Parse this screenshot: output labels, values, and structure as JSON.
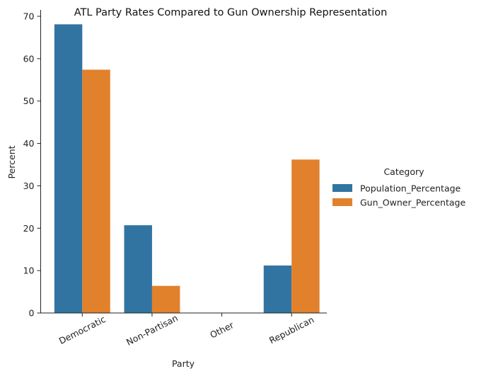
{
  "chart_data": {
    "type": "bar",
    "title": "ATL Party Rates Compared to Gun Ownership Representation",
    "xlabel": "Party",
    "ylabel": "Percent",
    "categories": [
      "Democratic",
      "Non-Partisan",
      "Other",
      "Republican"
    ],
    "series": [
      {
        "name": "Population_Percentage",
        "color": "#3274a1",
        "values": [
          68.1,
          20.7,
          0,
          11.2
        ]
      },
      {
        "name": "Gun_Owner_Percentage",
        "color": "#e1812c",
        "values": [
          57.4,
          6.4,
          0,
          36.2
        ]
      }
    ],
    "ylim": [
      0,
      71.5
    ],
    "yticks": [
      0,
      10,
      20,
      30,
      40,
      50,
      60,
      70
    ],
    "legend": {
      "title": "Category",
      "placement": "right"
    },
    "grid": false
  }
}
